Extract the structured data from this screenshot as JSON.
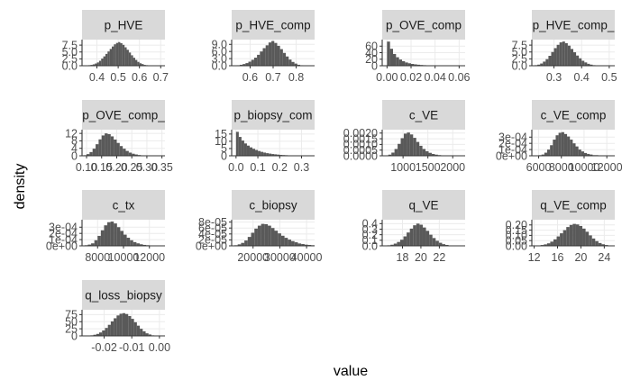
{
  "chart_data": {
    "type": "histogram-facets",
    "xlabel": "value",
    "ylabel": "density",
    "colors": {
      "strip_bg": "#d9d9d9",
      "bar": "#595959",
      "grid": "#ebebeb",
      "axis": "#333333",
      "text": "#4d4d4d"
    },
    "panels": [
      {
        "name": "p_HVE",
        "xlim": [
          0.33,
          0.72
        ],
        "ylim": [
          0,
          9.5
        ],
        "xticks": [
          0.4,
          0.5,
          0.6,
          0.7
        ],
        "xtick_labels": [
          "0.4",
          "0.5",
          "0.6",
          "0.7"
        ],
        "yticks": [
          0,
          2.5,
          5,
          7.5
        ],
        "ytick_labels": [
          "0.0",
          "2.5",
          "5.0",
          "7.5"
        ],
        "bin_start": 0.36,
        "bin_width": 0.01,
        "densities": [
          0.2,
          0.3,
          0.5,
          0.8,
          1.2,
          1.8,
          2.6,
          3.4,
          4.3,
          5.2,
          6.1,
          7.0,
          7.8,
          8.3,
          8.6,
          8.2,
          7.6,
          6.7,
          5.8,
          4.8,
          3.8,
          2.9,
          2.1,
          1.4,
          0.9,
          0.6,
          0.3,
          0.2
        ]
      },
      {
        "name": "p_HVE_comp",
        "xlim": [
          0.52,
          0.88
        ],
        "ylim": [
          0,
          11
        ],
        "xticks": [
          0.6,
          0.7,
          0.8
        ],
        "xtick_labels": [
          "0.6",
          "0.7",
          "0.8"
        ],
        "yticks": [
          0,
          3,
          6,
          9
        ],
        "ytick_labels": [
          "0.0",
          "3.0",
          "6.0",
          "9.0"
        ],
        "bin_start": 0.53,
        "bin_width": 0.0125,
        "densities": [
          0.1,
          0.2,
          0.4,
          0.7,
          1.1,
          1.7,
          2.5,
          3.4,
          4.6,
          6.0,
          7.4,
          8.6,
          9.8,
          10.4,
          9.6,
          8.4,
          7.0,
          5.4,
          3.9,
          2.6,
          1.6,
          0.9,
          0.4,
          0.2
        ]
      },
      {
        "name": "p_OVE_comp",
        "xlim": [
          -0.004,
          0.065
        ],
        "ylim": [
          0,
          80
        ],
        "xticks": [
          0.0,
          0.02,
          0.04,
          0.06
        ],
        "xtick_labels": [
          "0.00",
          "0.02",
          "0.04",
          "0.06"
        ],
        "yticks": [
          0,
          20,
          40,
          60
        ],
        "ytick_labels": [
          "0",
          "20",
          "40",
          "60"
        ],
        "bin_start": 0.0,
        "bin_width": 0.0025,
        "densities": [
          74,
          52,
          36,
          26,
          19,
          14,
          10,
          7.5,
          5.5,
          4.2,
          3.1,
          2.3,
          1.7,
          1.3,
          1.0,
          0.7,
          0.5,
          0.4,
          0.3,
          0.2,
          0.15,
          0.1,
          0.08,
          0.05
        ]
      },
      {
        "name": "p_HVE_comp_",
        "xlim": [
          0.22,
          0.52
        ],
        "ylim": [
          0,
          9.5
        ],
        "xticks": [
          0.3,
          0.4,
          0.5
        ],
        "xtick_labels": [
          "0.3",
          "0.4",
          "0.5"
        ],
        "yticks": [
          0,
          2.5,
          5,
          7.5
        ],
        "ytick_labels": [
          "0.0",
          "2.5",
          "5.0",
          "7.5"
        ],
        "bin_start": 0.23,
        "bin_width": 0.01,
        "densities": [
          0.2,
          0.4,
          0.8,
          1.5,
          2.4,
          3.6,
          5.0,
          6.4,
          7.6,
          8.5,
          8.8,
          8.2,
          7.3,
          6.1,
          4.9,
          3.7,
          2.7,
          1.8,
          1.2,
          0.7,
          0.4,
          0.2,
          0.1,
          0.05
        ]
      },
      {
        "name": "p_OVE_comp_",
        "xlim": [
          0.085,
          0.36
        ],
        "ylim": [
          0,
          14
        ],
        "xticks": [
          0.1,
          0.15,
          0.2,
          0.25,
          0.3,
          0.35
        ],
        "xtick_labels": [
          "0.10",
          "0.15",
          "0.20",
          "0.25",
          "0.30",
          "0.35"
        ],
        "yticks": [
          0,
          4,
          8,
          12
        ],
        "ytick_labels": [
          "0",
          "4",
          "8",
          "12"
        ],
        "bin_start": 0.09,
        "bin_width": 0.01,
        "densities": [
          0.3,
          0.9,
          2.0,
          3.8,
          6.2,
          8.8,
          10.9,
          12.0,
          11.6,
          10.4,
          8.7,
          6.9,
          5.2,
          3.8,
          2.6,
          1.7,
          1.1,
          0.7,
          0.4,
          0.25,
          0.15,
          0.1,
          0.06,
          0.04
        ]
      },
      {
        "name": "p_biopsy_com",
        "xlim": [
          -0.02,
          0.36
        ],
        "ylim": [
          0,
          18
        ],
        "xticks": [
          0.0,
          0.1,
          0.2,
          0.3
        ],
        "xtick_labels": [
          "0.0",
          "0.1",
          "0.2",
          "0.3"
        ],
        "yticks": [
          0,
          5,
          10,
          15
        ],
        "ytick_labels": [
          "0",
          "5",
          "10",
          "15"
        ],
        "bin_start": 0.0,
        "bin_width": 0.0125,
        "densities": [
          16.5,
          13.0,
          10.5,
          8.5,
          7.0,
          5.8,
          4.8,
          4.0,
          3.3,
          2.7,
          2.2,
          1.8,
          1.5,
          1.2,
          1.0,
          0.8,
          0.6,
          0.5,
          0.4,
          0.3,
          0.22,
          0.16,
          0.12,
          0.08
        ]
      },
      {
        "name": "c_VE",
        "xlim": [
          580,
          2250
        ],
        "ylim": [
          0,
          0.0023
        ],
        "xticks": [
          1000,
          1500,
          2000
        ],
        "xtick_labels": [
          "1000",
          "1500",
          "2000"
        ],
        "yticks": [
          0,
          0.0005,
          0.001,
          0.0015,
          0.002
        ],
        "ytick_labels": [
          "0.0000",
          "0.0005",
          "0.0010",
          "0.0015",
          "0.0020"
        ],
        "bin_start": 640,
        "bin_width": 62.5,
        "densities": [
          4e-05,
          0.0001,
          0.00028,
          0.0006,
          0.00105,
          0.00155,
          0.00195,
          0.00205,
          0.00188,
          0.00158,
          0.00122,
          0.00088,
          0.0006,
          0.0004,
          0.00026,
          0.00016,
          0.0001,
          6e-05,
          4e-05,
          2e-05,
          1e-05
        ]
      },
      {
        "name": "c_VE_comp",
        "xlim": [
          5400,
          12700
        ],
        "ylim": [
          0,
          0.00042
        ],
        "xticks": [
          6000,
          8000,
          10000,
          12000
        ],
        "xtick_labels": [
          "6000",
          "8000",
          "10000",
          "12000"
        ],
        "yticks": [
          0,
          0.0001,
          0.0002,
          0.0003
        ],
        "ytick_labels": [
          "0e+00",
          "1e-04",
          "2e-04",
          "3e-04"
        ],
        "bin_start": 6000,
        "bin_width": 250,
        "densities": [
          1e-05,
          2e-05,
          5e-05,
          0.0001,
          0.00017,
          0.00026,
          0.00033,
          0.00037,
          0.00038,
          0.00035,
          0.00031,
          0.00026,
          0.0002,
          0.00015,
          0.0001,
          7e-05,
          4.5e-05,
          3e-05,
          2e-05,
          1e-05,
          1e-05,
          5e-06
        ]
      },
      {
        "name": "c_tx",
        "xlim": [
          6800,
          13200
        ],
        "ylim": [
          0,
          0.00042
        ],
        "xticks": [
          8000,
          10000,
          12000
        ],
        "xtick_labels": [
          "8000",
          "10000",
          "12000"
        ],
        "yticks": [
          0,
          0.0001,
          0.0002,
          0.0003
        ],
        "ytick_labels": [
          "0e+00",
          "1e-04",
          "2e-04",
          "3e-04"
        ],
        "bin_start": 7000,
        "bin_width": 250,
        "densities": [
          1e-05,
          2e-05,
          4e-05,
          9e-05,
          0.00016,
          0.00025,
          0.00033,
          0.00038,
          0.00039,
          0.00036,
          0.0003,
          0.00024,
          0.00018,
          0.00013,
          9e-05,
          6e-05,
          4e-05,
          2.5e-05,
          1.5e-05,
          1e-05,
          5e-06,
          3e-06
        ]
      },
      {
        "name": "c_biopsy",
        "xlim": [
          12000,
          43000
        ],
        "ylim": [
          0,
          8.8e-05
        ],
        "xticks": [
          20000,
          30000,
          40000
        ],
        "xtick_labels": [
          "20000",
          "30000",
          "40000"
        ],
        "yticks": [
          0,
          2e-05,
          4e-05,
          6e-05,
          8e-05
        ],
        "ytick_labels": [
          "0e+00",
          "2e-05",
          "4e-05",
          "6e-05",
          "8e-05"
        ],
        "bin_start": 13000,
        "bin_width": 1250,
        "densities": [
          2e-06,
          5e-06,
          1e-05,
          1.8e-05,
          3e-05,
          4.4e-05,
          5.8e-05,
          6.8e-05,
          7.4e-05,
          7.3e-05,
          6.8e-05,
          6e-05,
          5.1e-05,
          4.2e-05,
          3.4e-05,
          2.7e-05,
          2.1e-05,
          1.6e-05,
          1.2e-05,
          8e-06,
          6e-06,
          4e-06,
          3e-06,
          2e-06
        ]
      },
      {
        "name": "q_VE",
        "xlim": [
          15.8,
          24.8
        ],
        "ylim": [
          0,
          0.47
        ],
        "xticks": [
          18,
          20,
          22
        ],
        "xtick_labels": [
          "18",
          "20",
          "22"
        ],
        "yticks": [
          0,
          0.1,
          0.2,
          0.3,
          0.4
        ],
        "ytick_labels": [
          "0.0",
          "0.1",
          "0.2",
          "0.3",
          "0.4"
        ],
        "bin_start": 16.0,
        "bin_width": 0.35,
        "densities": [
          0.004,
          0.01,
          0.02,
          0.04,
          0.07,
          0.11,
          0.17,
          0.24,
          0.31,
          0.37,
          0.4,
          0.38,
          0.33,
          0.27,
          0.2,
          0.14,
          0.09,
          0.055,
          0.03,
          0.016,
          0.008,
          0.004,
          0.002,
          0.001
        ]
      },
      {
        "name": "q_VE_comp",
        "xlim": [
          11.6,
          25.8
        ],
        "ylim": [
          0,
          0.25
        ],
        "xticks": [
          12,
          16,
          20,
          24
        ],
        "xtick_labels": [
          "12",
          "16",
          "20",
          "24"
        ],
        "yticks": [
          0,
          0.05,
          0.1,
          0.15,
          0.2
        ],
        "ytick_labels": [
          "0.00",
          "0.05",
          "0.10",
          "0.15",
          "0.20"
        ],
        "bin_start": 12.0,
        "bin_width": 0.55,
        "densities": [
          0.002,
          0.004,
          0.008,
          0.014,
          0.024,
          0.04,
          0.062,
          0.09,
          0.12,
          0.15,
          0.18,
          0.2,
          0.21,
          0.205,
          0.19,
          0.165,
          0.135,
          0.1,
          0.07,
          0.045,
          0.027,
          0.015,
          0.008,
          0.004,
          0.002
        ]
      },
      {
        "name": "q_loss_biopsy",
        "xlim": [
          -0.028,
          0.002
        ],
        "ylim": [
          0,
          92
        ],
        "xticks": [
          -0.02,
          -0.01,
          0.0
        ],
        "xtick_labels": [
          "-0.02",
          "-0.01",
          "0.00"
        ],
        "yticks": [
          0,
          25,
          50,
          75
        ],
        "ytick_labels": [
          "0",
          "25",
          "50",
          "75"
        ],
        "bin_start": -0.026,
        "bin_width": 0.00105,
        "densities": [
          1,
          2,
          4,
          7,
          12,
          19,
          28,
          39,
          51,
          62,
          72,
          78,
          80,
          77,
          70,
          60,
          48,
          36,
          25,
          16,
          9,
          5,
          2,
          1
        ]
      }
    ]
  }
}
